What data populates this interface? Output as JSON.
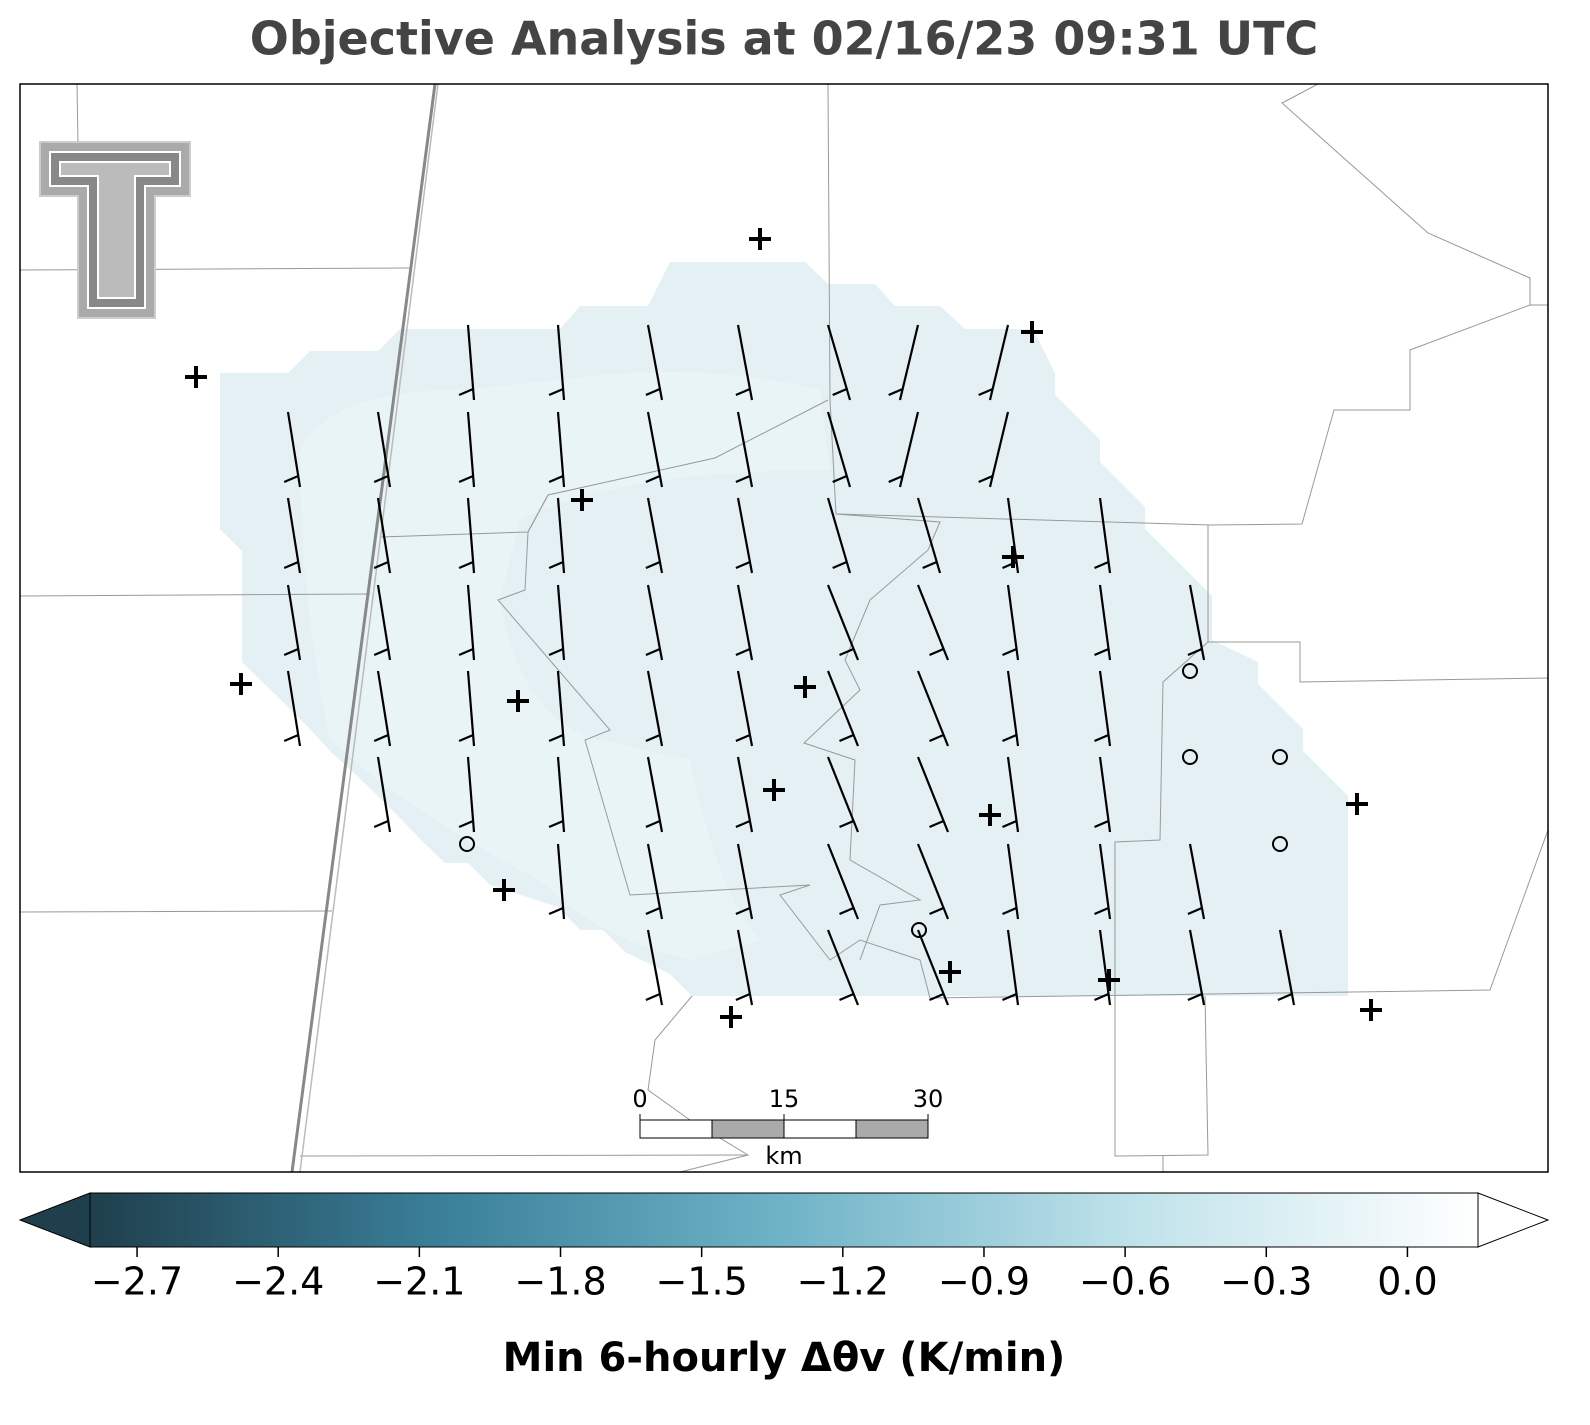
{
  "title": "Objective Analysis at 02/16/23 09:31 UTC",
  "scale_bar": {
    "ticks": [
      "0",
      "15",
      "30"
    ],
    "unit": "km"
  },
  "colorbar": {
    "label": "Min 6-hourly Δθv (K/min)",
    "clim": [
      -2.8,
      0.15
    ],
    "colors": [
      "#1f3f4c",
      "#3a7f99",
      "#6fb3c7",
      "#bfe2ea",
      "#ffffff"
    ],
    "ticks": [
      {
        "value": -2.7,
        "label": "−2.7"
      },
      {
        "value": -2.4,
        "label": "−2.4"
      },
      {
        "value": -2.1,
        "label": "−2.1"
      },
      {
        "value": -1.8,
        "label": "−1.8"
      },
      {
        "value": -1.5,
        "label": "−1.5"
      },
      {
        "value": -1.2,
        "label": "−1.2"
      },
      {
        "value": -0.9,
        "label": "−0.9"
      },
      {
        "value": -0.6,
        "label": "−0.6"
      },
      {
        "value": -0.3,
        "label": "−0.3"
      },
      {
        "value": 0.0,
        "label": "0.0"
      }
    ]
  }
}
